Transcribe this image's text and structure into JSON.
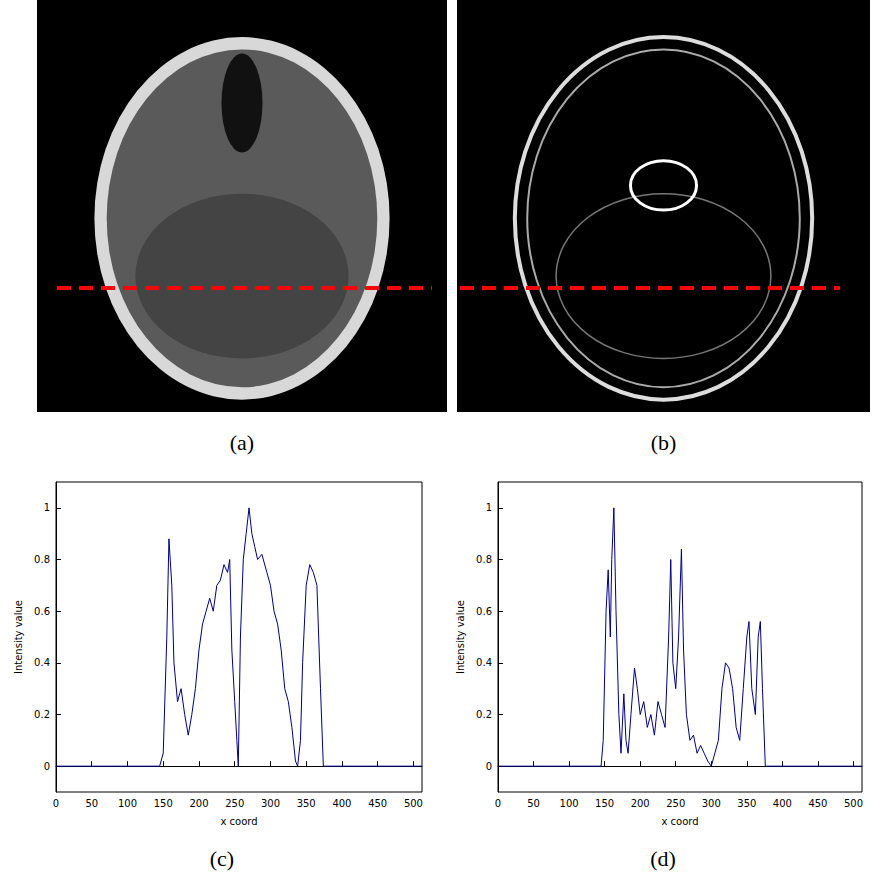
{
  "images": [
    {
      "label": "(a)"
    },
    {
      "label": "(b)"
    }
  ],
  "chart_data": [
    {
      "label": "(c)",
      "type": "line",
      "x_label": "x coord",
      "y_label": "Intensity value",
      "color": "#000080",
      "grid": false,
      "xlim": [
        0,
        512
      ],
      "xticks": [
        0,
        50,
        100,
        150,
        200,
        250,
        300,
        350,
        400,
        450,
        500
      ],
      "ylim": [
        -0.1,
        1.1
      ],
      "yticks": [
        0,
        0.2,
        0.4,
        0.6,
        0.8,
        1
      ],
      "x": [
        0,
        145,
        150,
        155,
        158,
        162,
        165,
        170,
        175,
        180,
        185,
        190,
        195,
        200,
        205,
        210,
        215,
        220,
        225,
        230,
        235,
        240,
        243,
        246,
        250,
        253,
        255,
        258,
        262,
        266,
        270,
        274,
        278,
        282,
        288,
        295,
        300,
        305,
        310,
        315,
        320,
        325,
        330,
        335,
        338,
        342,
        345,
        350,
        355,
        360,
        365,
        370,
        374,
        512
      ],
      "values": [
        0,
        0,
        0.05,
        0.5,
        0.88,
        0.7,
        0.4,
        0.25,
        0.3,
        0.2,
        0.12,
        0.2,
        0.3,
        0.45,
        0.55,
        0.6,
        0.65,
        0.6,
        0.7,
        0.72,
        0.78,
        0.75,
        0.8,
        0.45,
        0.25,
        0.1,
        0,
        0.5,
        0.8,
        0.9,
        1,
        0.9,
        0.85,
        0.8,
        0.82,
        0.75,
        0.7,
        0.6,
        0.55,
        0.45,
        0.3,
        0.25,
        0.15,
        0.02,
        0,
        0.1,
        0.4,
        0.7,
        0.78,
        0.75,
        0.7,
        0.3,
        0,
        0
      ]
    },
    {
      "label": "(d)",
      "type": "line",
      "x_label": "x coord",
      "y_label": "Intensity value",
      "color": "#000080",
      "grid": false,
      "xlim": [
        0,
        512
      ],
      "xticks": [
        0,
        50,
        100,
        150,
        200,
        250,
        300,
        350,
        400,
        450,
        500
      ],
      "ylim": [
        -0.1,
        1.1
      ],
      "yticks": [
        0,
        0.2,
        0.4,
        0.6,
        0.8,
        1
      ],
      "x": [
        0,
        145,
        148,
        152,
        155,
        158,
        160,
        163,
        166,
        170,
        173,
        177,
        180,
        183,
        187,
        192,
        196,
        200,
        205,
        210,
        215,
        220,
        225,
        230,
        235,
        240,
        243,
        246,
        250,
        254,
        258,
        261,
        265,
        270,
        275,
        280,
        285,
        290,
        295,
        300,
        305,
        310,
        315,
        320,
        325,
        330,
        335,
        340,
        345,
        350,
        353,
        357,
        362,
        366,
        369,
        372,
        376,
        512
      ],
      "values": [
        0,
        0,
        0.1,
        0.6,
        0.76,
        0.5,
        0.8,
        1,
        0.6,
        0.2,
        0.05,
        0.28,
        0.1,
        0.05,
        0.2,
        0.38,
        0.3,
        0.2,
        0.25,
        0.15,
        0.2,
        0.12,
        0.25,
        0.2,
        0.15,
        0.5,
        0.8,
        0.4,
        0.3,
        0.5,
        0.84,
        0.45,
        0.2,
        0.1,
        0.12,
        0.05,
        0.08,
        0.05,
        0.02,
        0,
        0.05,
        0.1,
        0.3,
        0.4,
        0.38,
        0.3,
        0.15,
        0.1,
        0.3,
        0.5,
        0.56,
        0.3,
        0.2,
        0.5,
        0.56,
        0.3,
        0,
        0
      ]
    }
  ]
}
